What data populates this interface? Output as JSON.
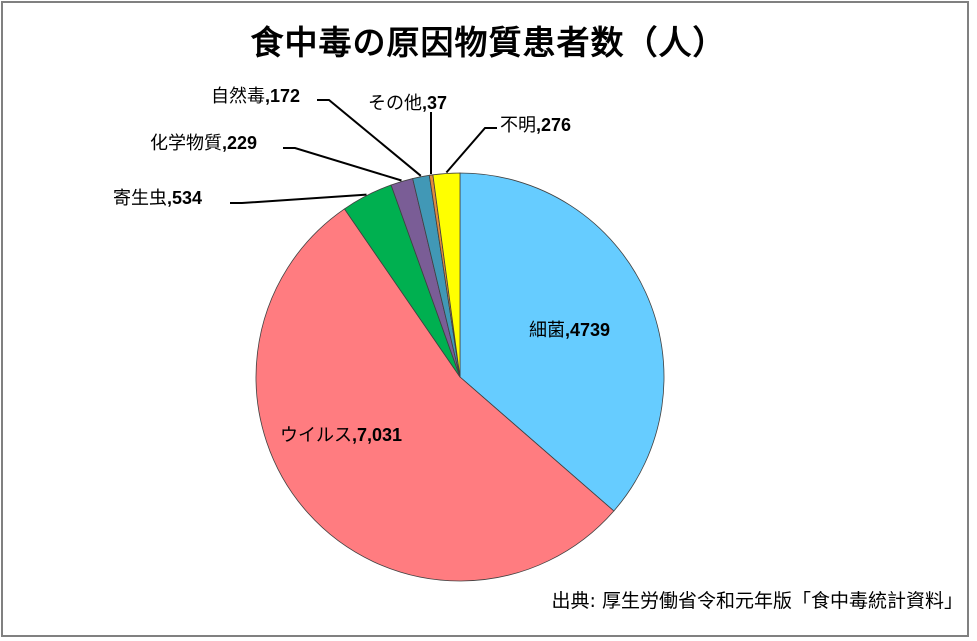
{
  "chart_data": {
    "type": "pie",
    "title": "食中毒の原因物質患者数（人）",
    "start_angle_deg": 0,
    "direction": "clockwise",
    "categories": [
      "細菌",
      "ウイルス",
      "寄生虫",
      "化学物質",
      "自然毒",
      "その他",
      "不明"
    ],
    "values": [
      4739,
      7031,
      534,
      229,
      172,
      37,
      276
    ],
    "value_labels": [
      "4739",
      "7,031",
      "534",
      "229",
      "172",
      "37",
      "276"
    ],
    "colors": [
      "#66ccff",
      "#ff7c80",
      "#00b050",
      "#7a5d96",
      "#4198b6",
      "#e28b3c",
      "#ffff00"
    ],
    "labels": [
      {
        "name": "細菌",
        "sep": ",",
        "value": "4739"
      },
      {
        "name": "ウイルス",
        "sep": ",",
        "value": "7,031"
      },
      {
        "name": "寄生虫",
        "sep": ",",
        "value": "534"
      },
      {
        "name": "化学物質",
        "sep": ",",
        "value": "229"
      },
      {
        "name": "自然毒",
        "sep": ",",
        "value": "172"
      },
      {
        "name": "その他",
        "sep": ",",
        "value": "37"
      },
      {
        "name": "不明",
        "sep": ",",
        "value": "276"
      }
    ],
    "legend": "none",
    "source_note": "出典: 厚生労働省令和元年版「食中毒統計資料」"
  },
  "chart": {
    "title": "食中毒の原因物質患者数（人）",
    "source": "出典: 厚生労働省令和元年版「食中毒統計資料」"
  }
}
